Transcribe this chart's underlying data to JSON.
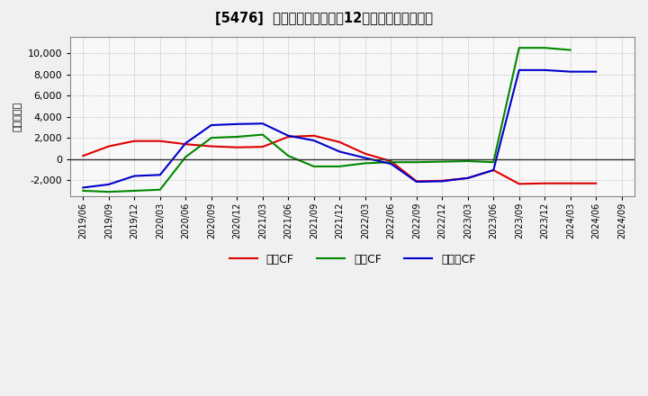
{
  "title": "[5476]  キャッシュフローの12か月移動合計の推移",
  "ylabel": "（百万円）",
  "background_color": "#f0f0f0",
  "plot_bg_color": "#f8f8f8",
  "grid_color": "#aaaaaa",
  "x_labels": [
    "2019/06",
    "2019/09",
    "2019/12",
    "2020/03",
    "2020/06",
    "2020/09",
    "2020/12",
    "2021/03",
    "2021/06",
    "2021/09",
    "2021/12",
    "2022/03",
    "2022/06",
    "2022/09",
    "2022/12",
    "2023/03",
    "2023/06",
    "2023/09",
    "2023/12",
    "2024/03",
    "2024/06",
    "2024/09"
  ],
  "series_order": [
    "営業CF",
    "投資CF",
    "フリーCF"
  ],
  "series": {
    "営業CF": {
      "color": "#dd0000",
      "values": [
        300,
        1200,
        1700,
        1700,
        1400,
        1200,
        1100,
        1150,
        2100,
        2200,
        1600,
        500,
        -200,
        -2100,
        -2050,
        -1800,
        -1050,
        -2350,
        -2300,
        -2300,
        -2300,
        null
      ]
    },
    "投資CF": {
      "color": "#008800",
      "values": [
        -3000,
        -3100,
        -3000,
        -2900,
        200,
        2000,
        2100,
        2300,
        300,
        -700,
        -700,
        -400,
        -300,
        -300,
        -250,
        -200,
        -300,
        10500,
        10500,
        10300,
        null,
        null
      ]
    },
    "フリーCF": {
      "color": "#0000cc",
      "values": [
        -2700,
        -2400,
        -1600,
        -1500,
        1500,
        3200,
        3300,
        3350,
        2200,
        1750,
        700,
        100,
        -450,
        -2150,
        -2100,
        -1800,
        -1050,
        8400,
        8400,
        8250,
        8250,
        null
      ]
    }
  },
  "ylim": [
    -3500,
    11500
  ],
  "yticks": [
    -2000,
    0,
    2000,
    4000,
    6000,
    8000,
    10000
  ],
  "legend_labels": [
    "営業CF",
    "投資CF",
    "フリーCF"
  ],
  "legend_colors": [
    "#dd0000",
    "#008800",
    "#0000cc"
  ]
}
